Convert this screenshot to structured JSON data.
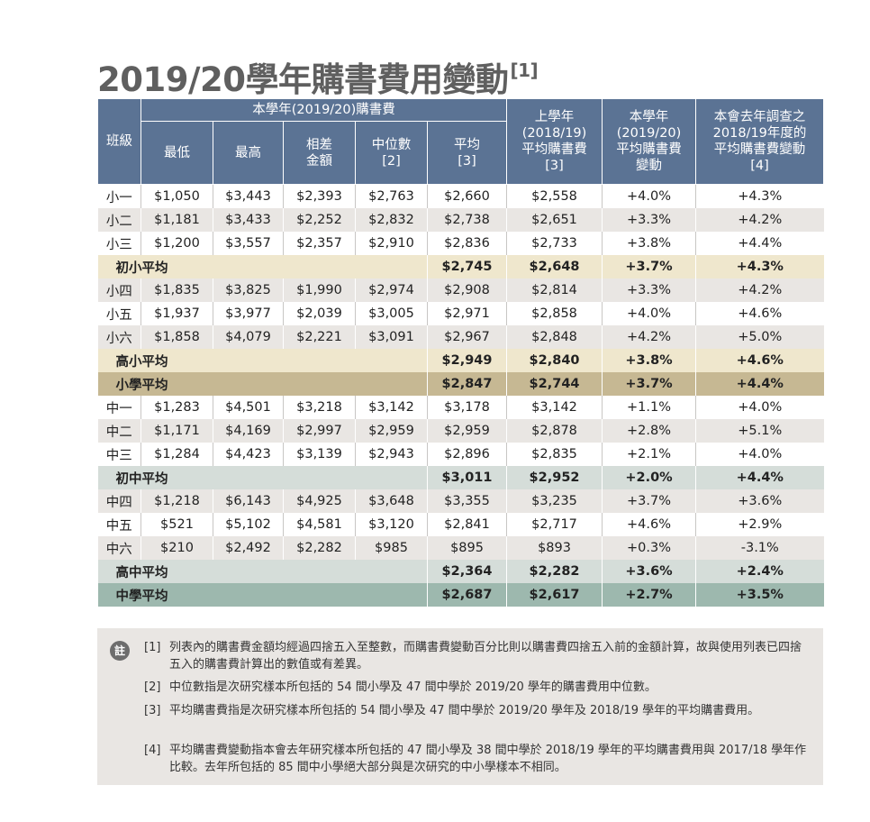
{
  "title": "2019/20學年購書費用變動",
  "title_ref": "[1]",
  "table": {
    "header": {
      "class": "班級",
      "current_group": "本學年(2019/20)購書費",
      "min": "最低",
      "max": "最高",
      "diff_l1": "相差",
      "diff_l2": "金額",
      "median_l1": "中位數",
      "median_l2": "[2]",
      "mean_l1": "平均",
      "mean_l2": "[3]",
      "prev_l1": "上學年",
      "prev_l2": "(2018/19)",
      "prev_l3": "平均購書費",
      "prev_l4": "[3]",
      "chg_l1": "本學年",
      "chg_l2": "(2019/20)",
      "chg_l3": "平均購書費",
      "chg_l4": "變動",
      "last_l1": "本會去年調查之",
      "last_l2": "2018/19年度的",
      "last_l3": "平均購書費變動",
      "last_l4": "[4]"
    },
    "rows": [
      {
        "kind": "row",
        "cells": [
          "小一",
          "$1,050",
          "$3,443",
          "$2,393",
          "$2,763",
          "$2,660",
          "$2,558",
          "+4.0%",
          "+4.3%"
        ]
      },
      {
        "kind": "row",
        "cells": [
          "小二",
          "$1,181",
          "$3,433",
          "$2,252",
          "$2,832",
          "$2,738",
          "$2,651",
          "+3.3%",
          "+4.2%"
        ]
      },
      {
        "kind": "row",
        "cells": [
          "小三",
          "$1,200",
          "$3,557",
          "$2,357",
          "$2,910",
          "$2,836",
          "$2,733",
          "+3.8%",
          "+4.4%"
        ]
      },
      {
        "kind": "avg-primary-low",
        "label": "初小平均",
        "cells": [
          "$2,745",
          "$2,648",
          "+3.7%",
          "+4.3%"
        ]
      },
      {
        "kind": "row",
        "cells": [
          "小四",
          "$1,835",
          "$3,825",
          "$1,990",
          "$2,974",
          "$2,908",
          "$2,814",
          "+3.3%",
          "+4.2%"
        ]
      },
      {
        "kind": "row",
        "cells": [
          "小五",
          "$1,937",
          "$3,977",
          "$2,039",
          "$3,005",
          "$2,971",
          "$2,858",
          "+4.0%",
          "+4.6%"
        ]
      },
      {
        "kind": "row",
        "cells": [
          "小六",
          "$1,858",
          "$4,079",
          "$2,221",
          "$3,091",
          "$2,967",
          "$2,848",
          "+4.2%",
          "+5.0%"
        ]
      },
      {
        "kind": "avg-primary-high",
        "label": "高小平均",
        "cells": [
          "$2,949",
          "$2,840",
          "+3.8%",
          "+4.6%"
        ]
      },
      {
        "kind": "avg-primary",
        "label": "小學平均",
        "cells": [
          "$2,847",
          "$2,744",
          "+3.7%",
          "+4.4%"
        ]
      },
      {
        "kind": "row",
        "cells": [
          "中一",
          "$1,283",
          "$4,501",
          "$3,218",
          "$3,142",
          "$3,178",
          "$3,142",
          "+1.1%",
          "+4.0%"
        ]
      },
      {
        "kind": "row",
        "cells": [
          "中二",
          "$1,171",
          "$4,169",
          "$2,997",
          "$2,959",
          "$2,959",
          "$2,878",
          "+2.8%",
          "+5.1%"
        ]
      },
      {
        "kind": "row",
        "cells": [
          "中三",
          "$1,284",
          "$4,423",
          "$3,139",
          "$2,943",
          "$2,896",
          "$2,835",
          "+2.1%",
          "+4.0%"
        ]
      },
      {
        "kind": "avg-secondary-low",
        "label": "初中平均",
        "cells": [
          "$3,011",
          "$2,952",
          "+2.0%",
          "+4.4%"
        ]
      },
      {
        "kind": "row",
        "cells": [
          "中四",
          "$1,218",
          "$6,143",
          "$4,925",
          "$3,648",
          "$3,355",
          "$3,235",
          "+3.7%",
          "+3.6%"
        ]
      },
      {
        "kind": "row",
        "cells": [
          "中五",
          "$521",
          "$5,102",
          "$4,581",
          "$3,120",
          "$2,841",
          "$2,717",
          "+4.6%",
          "+2.9%"
        ]
      },
      {
        "kind": "row",
        "cells": [
          "中六",
          "$210",
          "$2,492",
          "$2,282",
          "$985",
          "$895",
          "$893",
          "+0.3%",
          "-3.1%"
        ]
      },
      {
        "kind": "avg-secondary-high",
        "label": "高中平均",
        "cells": [
          "$2,364",
          "$2,282",
          "+3.6%",
          "+2.4%"
        ]
      },
      {
        "kind": "avg-secondary",
        "label": "中學平均",
        "cells": [
          "$2,687",
          "$2,617",
          "+2.7%",
          "+3.5%"
        ]
      }
    ]
  },
  "notes": {
    "badge": "註",
    "items": [
      {
        "ref": "[1]",
        "text": "列表內的購書費金額均經過四捨五入至整數，而購書費變動百分比則以購書費四捨五入前的金額計算，故與使用列表已四捨五入的購書費計算出的數值或有差異。"
      },
      {
        "ref": "[2]",
        "text": "中位數指是次研究樣本所包括的 54 間小學及 47 間中學於 2019/20 學年的購書費用中位數。"
      },
      {
        "ref": "[3]",
        "text": "平均購書費指是次研究樣本所包括的 54 間小學及 47 間中學於 2019/20 學年及 2018/19 學年的平均購書費用。"
      },
      {
        "ref": "[4]",
        "text": "平均購書費變動指本會去年研究樣本所包括的 47 間小學及 38 間中學於 2018/19 學年的平均購書費用與 2017/18 學年作比較。去年所包括的 85 間中小學絕大部分與是次研究的中小學樣本不相同。"
      }
    ]
  }
}
